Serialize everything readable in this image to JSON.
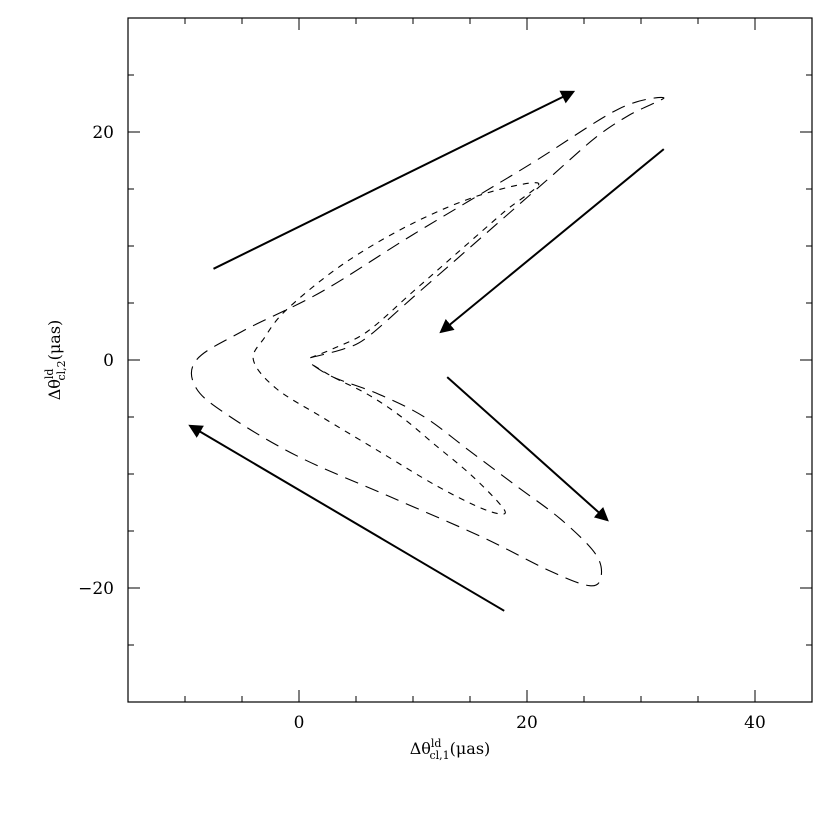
{
  "chart_data": {
    "type": "line",
    "title": "",
    "xlabel": "Δθ^{ld}_{cl,1}(μas)",
    "ylabel": "Δθ^{ld}_{cl,2}(μas)",
    "xlabel_parts": {
      "main": "Δθ",
      "sup": "ld",
      "sub": "cl,1",
      "unit": "(μas)"
    },
    "ylabel_parts": {
      "main": "Δθ",
      "sup": "ld",
      "sub": "cl,2",
      "unit": "(μas)"
    },
    "xlim": [
      -15,
      45
    ],
    "ylim": [
      -30,
      30
    ],
    "xticks": [
      0,
      20,
      40
    ],
    "yticks": [
      -20,
      0,
      20
    ],
    "grid": false,
    "legend": "none",
    "series": [
      {
        "style": "long-dash",
        "x": [
          1,
          4,
          6,
          10,
          14,
          18,
          22,
          26,
          29,
          32,
          28,
          20,
          10,
          2,
          -5,
          -9,
          -9,
          -6,
          0,
          8,
          16,
          22,
          25.5,
          26.5,
          26,
          23,
          19,
          15,
          11,
          7,
          3,
          1
        ],
        "y": [
          0.2,
          1,
          2,
          5.5,
          9,
          12.5,
          16,
          19.5,
          21.5,
          23,
          22,
          17,
          11,
          6,
          2.5,
          0,
          -2.5,
          -5,
          -8.5,
          -12,
          -15.5,
          -18.5,
          -19.8,
          -19,
          -17,
          -14,
          -11,
          -8,
          -5,
          -3,
          -1.5,
          -0.3
        ]
      },
      {
        "style": "short-dash",
        "x": [
          1,
          3,
          6,
          10,
          14,
          18,
          21,
          16,
          10,
          4,
          -1,
          -3,
          -4,
          -2,
          2,
          7,
          12,
          16,
          18,
          17.5,
          15,
          12,
          9,
          6,
          3,
          1
        ],
        "y": [
          0.2,
          1,
          2.5,
          6,
          9.5,
          13,
          15.5,
          14.5,
          12,
          8.5,
          4.5,
          2,
          0,
          -2.5,
          -5,
          -8,
          -11,
          -13,
          -13.5,
          -12.5,
          -10,
          -7.5,
          -5,
          -3,
          -1.5,
          -0.3
        ]
      }
    ],
    "annotations": [
      {
        "type": "arrow",
        "from": [
          -7.5,
          8
        ],
        "to": [
          24,
          23.5
        ]
      },
      {
        "type": "arrow",
        "from": [
          32,
          18.5
        ],
        "to": [
          12.5,
          2.5
        ]
      },
      {
        "type": "arrow",
        "from": [
          13,
          -1.5
        ],
        "to": [
          27,
          -14
        ]
      },
      {
        "type": "arrow",
        "from": [
          18,
          -22
        ],
        "to": [
          -9.5,
          -5.8
        ]
      }
    ]
  }
}
